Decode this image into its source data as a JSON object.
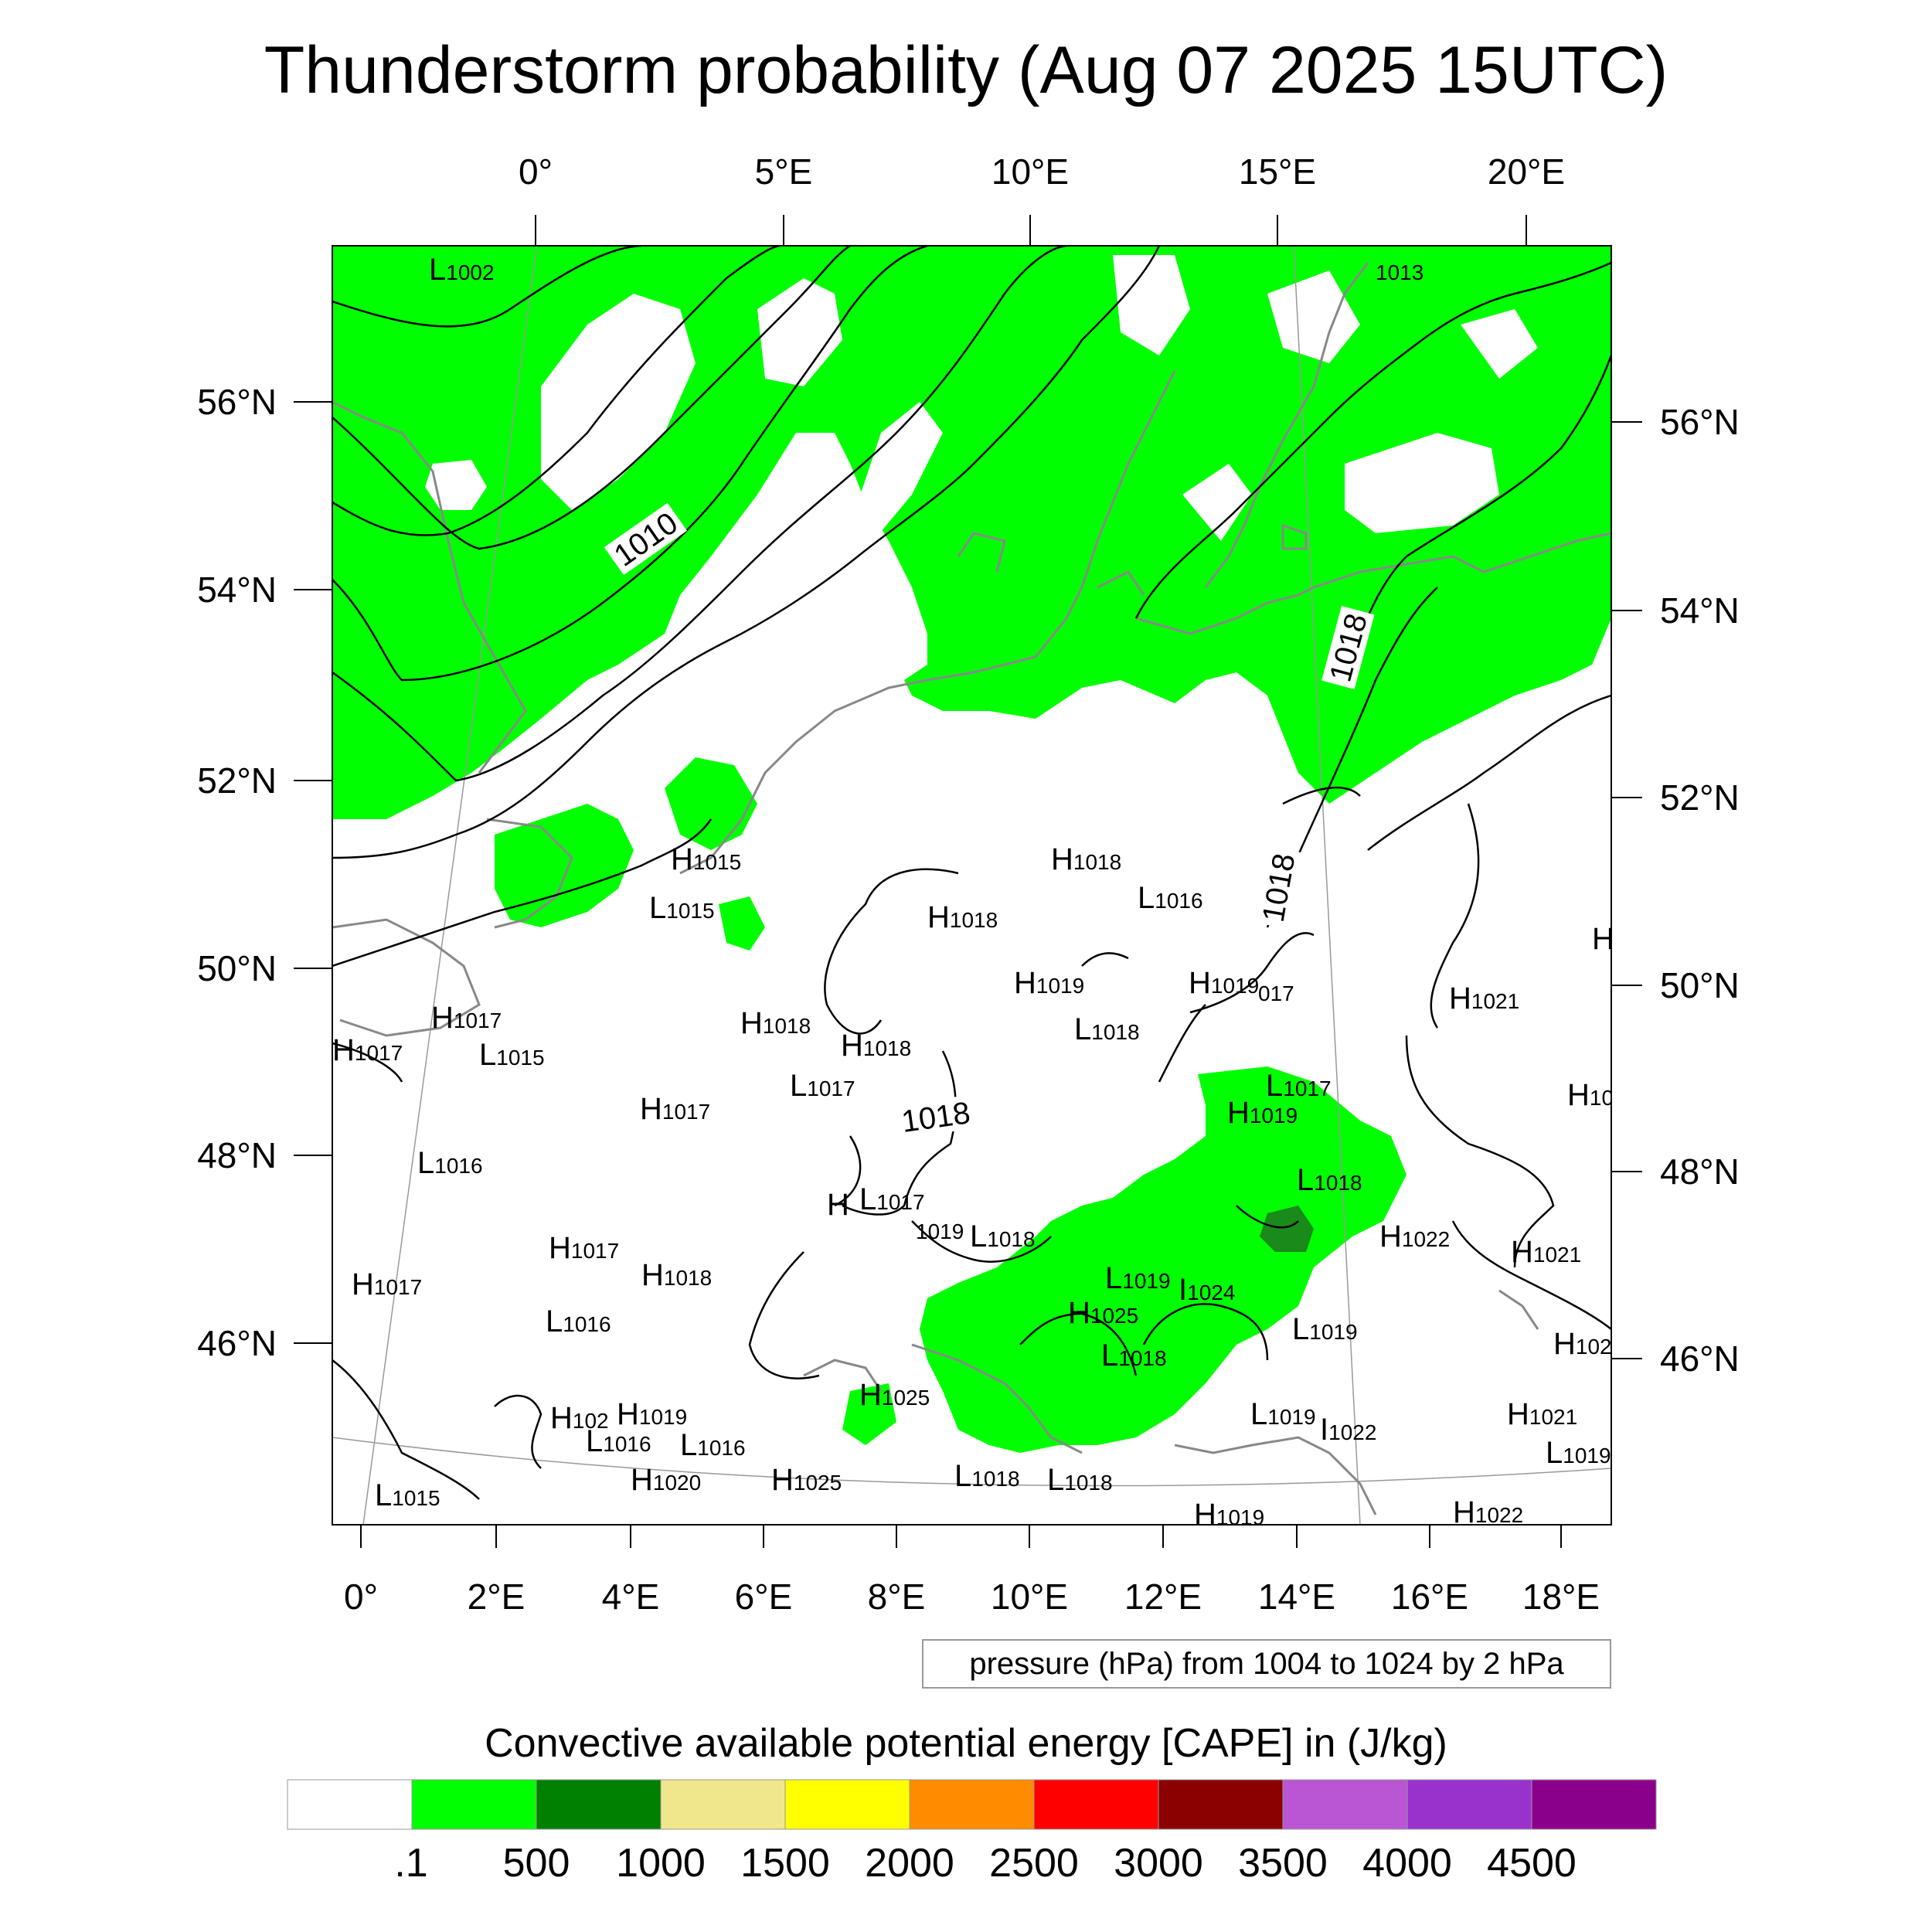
{
  "title": "Thunderstorm probability (Aug 07 2025 15UTC)",
  "top_lon_labels": [
    "0°",
    "5°E",
    "10°E",
    "15°E",
    "20°E"
  ],
  "bottom_lon_labels": [
    "0°",
    "2°E",
    "4°E",
    "6°E",
    "8°E",
    "10°E",
    "12°E",
    "14°E",
    "16°E",
    "18°E"
  ],
  "left_lat_labels": [
    "56°N",
    "54°N",
    "52°N",
    "50°N",
    "48°N",
    "46°N"
  ],
  "right_lat_labels": [
    "56°N",
    "54°N",
    "52°N",
    "50°N",
    "48°N",
    "46°N"
  ],
  "contour_note": "pressure (hPa) from 1004 to 1024 by 2 hPa",
  "contour_labels": [
    "1010",
    "1018",
    "1018",
    "1018"
  ],
  "pressure_centers": [
    {
      "t": "L",
      "v": "1002"
    },
    {
      "t": "",
      "v": "1013"
    },
    {
      "t": "H",
      "v": "1015"
    },
    {
      "t": "L",
      "v": "1015"
    },
    {
      "t": "H",
      "v": "1018"
    },
    {
      "t": "L",
      "v": "1016"
    },
    {
      "t": "H",
      "v": "1018"
    },
    {
      "t": "H",
      "v": "1019"
    },
    {
      "t": "H",
      "v": "1019"
    },
    {
      "t": "",
      "v": "017"
    },
    {
      "t": "H",
      "v": "1021"
    },
    {
      "t": "H",
      "v": "1017"
    },
    {
      "t": "H",
      "v": "1017"
    },
    {
      "t": "L",
      "v": "1015"
    },
    {
      "t": "H",
      "v": "1018"
    },
    {
      "t": "H",
      "v": "1018"
    },
    {
      "t": "L",
      "v": "1018"
    },
    {
      "t": "L",
      "v": "1017"
    },
    {
      "t": "L",
      "v": "1017"
    },
    {
      "t": "H",
      "v": "1017"
    },
    {
      "t": "H",
      "v": "1019"
    },
    {
      "t": "L",
      "v": "1016"
    },
    {
      "t": "H",
      "v": ""
    },
    {
      "t": "L",
      "v": "1017"
    },
    {
      "t": "L",
      "v": "1018"
    },
    {
      "t": "H",
      "v": "1017"
    },
    {
      "t": "H",
      "v": "1018"
    },
    {
      "t": "",
      "v": "1019"
    },
    {
      "t": "L",
      "v": "1018"
    },
    {
      "t": "H",
      "v": "1022"
    },
    {
      "t": "H",
      "v": "1021"
    },
    {
      "t": "H",
      "v": "1017"
    },
    {
      "t": "L",
      "v": "1016"
    },
    {
      "t": "L",
      "v": "1019"
    },
    {
      "t": "I",
      "v": "1024"
    },
    {
      "t": "H",
      "v": "1025"
    },
    {
      "t": "L",
      "v": "1019"
    },
    {
      "t": "L",
      "v": "1018"
    },
    {
      "t": "H",
      "v": "102"
    },
    {
      "t": "H",
      "v": "1025"
    },
    {
      "t": "H",
      "v": "102"
    },
    {
      "t": "H",
      "v": "1019"
    },
    {
      "t": "L",
      "v": "1016"
    },
    {
      "t": "L",
      "v": "1016"
    },
    {
      "t": "L",
      "v": "1019"
    },
    {
      "t": "I",
      "v": "1022"
    },
    {
      "t": "H",
      "v": "1021"
    },
    {
      "t": "L",
      "v": "1019"
    },
    {
      "t": "H",
      "v": "1020"
    },
    {
      "t": "H",
      "v": "1025"
    },
    {
      "t": "L",
      "v": "1018"
    },
    {
      "t": "L",
      "v": "1018"
    },
    {
      "t": "L",
      "v": "1015"
    },
    {
      "t": "H",
      "v": "1019"
    },
    {
      "t": "H",
      "v": "1022"
    },
    {
      "t": "H",
      "v": "10"
    },
    {
      "t": "H",
      "v": ""
    }
  ],
  "colorbar": {
    "title": "Convective available potential energy [CAPE] in (J/kg)",
    "labels": [
      ".1",
      "500",
      "1000",
      "1500",
      "2000",
      "2500",
      "3000",
      "3500",
      "4000",
      "4500"
    ],
    "colors": [
      "#ffffff",
      "#00ff00",
      "#008000",
      "#f0e68c",
      "#ffff00",
      "#ff8c00",
      "#ff0000",
      "#8b0000",
      "#ba55d3",
      "#9932cc",
      "#8b008b"
    ]
  },
  "colors": {
    "cape_low": "#00ff00",
    "cape_mid": "#1a8a1a",
    "coast": "#888888",
    "isobar": "#000000"
  }
}
